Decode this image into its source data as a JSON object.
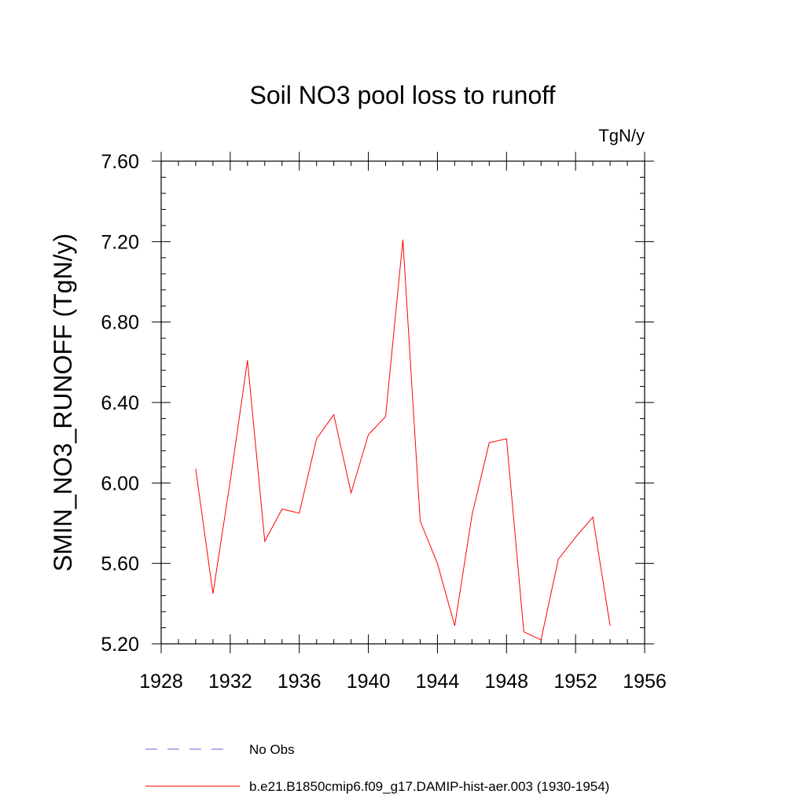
{
  "chart_data": {
    "type": "line",
    "title": "Soil NO3 pool loss to runoff",
    "units_label": "TgN/y",
    "ylabel": "SMIN_NO3_RUNOFF  (TgN/y)",
    "xlabel": "",
    "xlim": [
      1928,
      1956
    ],
    "ylim": [
      5.2,
      7.6
    ],
    "x_major_ticks": [
      1928,
      1932,
      1936,
      1940,
      1944,
      1948,
      1952,
      1956
    ],
    "x_tick_labels": [
      "1928",
      "1932",
      "1936",
      "1940",
      "1944",
      "1948",
      "1952",
      "1956"
    ],
    "y_major_ticks": [
      5.2,
      5.6,
      6.0,
      6.4,
      6.8,
      7.2,
      7.6
    ],
    "y_tick_labels": [
      "5.20",
      "5.60",
      "6.00",
      "6.40",
      "6.80",
      "7.20",
      "7.60"
    ],
    "grid": false,
    "legend_position": "bottom",
    "series": [
      {
        "name": "b.e21.B1850cmip6.f09_g17.DAMIP-hist-aer.003 (1930-1954)",
        "color": "#ff0000",
        "line_style": "solid",
        "x": [
          1930,
          1931,
          1932,
          1933,
          1934,
          1935,
          1936,
          1937,
          1938,
          1939,
          1940,
          1941,
          1942,
          1943,
          1944,
          1945,
          1946,
          1947,
          1948,
          1949,
          1950,
          1951,
          1952,
          1953,
          1954
        ],
        "y": [
          6.07,
          5.45,
          6.01,
          6.61,
          5.71,
          5.87,
          5.85,
          6.22,
          6.34,
          5.95,
          6.24,
          6.33,
          7.21,
          5.81,
          5.6,
          5.29,
          5.84,
          6.2,
          6.22,
          5.26,
          5.22,
          5.62,
          5.73,
          5.83,
          5.29
        ]
      },
      {
        "name": "No Obs",
        "color": "#6666cc",
        "line_style": "dashed",
        "x": [],
        "y": []
      }
    ]
  }
}
